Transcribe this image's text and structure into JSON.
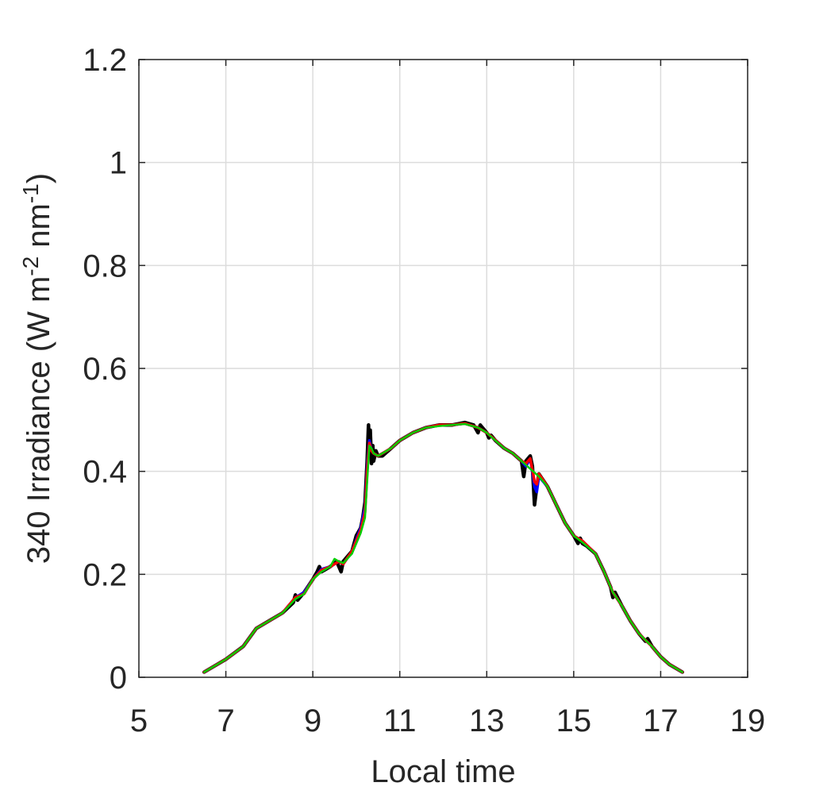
{
  "chart_data": {
    "type": "line",
    "xlabel": "Local time",
    "ylabel": "340 Irradiance (W m^-2 nm^-1)",
    "ylabel_parts": {
      "main": "340 Irradiance (W m",
      "sup1": "-2",
      "mid": " nm",
      "sup2": "-1",
      "end": ")"
    },
    "xlim": [
      5,
      19
    ],
    "ylim": [
      0,
      1.2
    ],
    "xticks": [
      "5",
      "7",
      "9",
      "11",
      "13",
      "15",
      "17",
      "19"
    ],
    "yticks": [
      "0",
      "0.2",
      "0.4",
      "0.6",
      "0.8",
      "1",
      "1.2"
    ],
    "grid": true,
    "series": [
      {
        "color": "#000000",
        "x": [
          6.5,
          7.0,
          7.4,
          7.7,
          8.0,
          8.3,
          8.55,
          8.6,
          8.65,
          8.8,
          9.0,
          9.1,
          9.15,
          9.2,
          9.3,
          9.4,
          9.55,
          9.6,
          9.65,
          9.7,
          9.9,
          10.0,
          10.1,
          10.15,
          10.2,
          10.25,
          10.28,
          10.3,
          10.32,
          10.35,
          10.38,
          10.4,
          10.45,
          10.5,
          10.6,
          10.8,
          11.0,
          11.3,
          11.6,
          11.9,
          12.2,
          12.5,
          12.7,
          12.8,
          12.85,
          12.9,
          13.0,
          13.05,
          13.1,
          13.2,
          13.4,
          13.6,
          13.8,
          13.85,
          13.9,
          14.0,
          14.05,
          14.1,
          14.15,
          14.2,
          14.4,
          14.6,
          14.8,
          15.0,
          15.1,
          15.15,
          15.2,
          15.3,
          15.5,
          15.7,
          15.85,
          15.9,
          15.95,
          16.1,
          16.3,
          16.5,
          16.6,
          16.65,
          16.7,
          16.8,
          17.0,
          17.2,
          17.5
        ],
        "y": [
          0.01,
          0.035,
          0.06,
          0.095,
          0.11,
          0.125,
          0.145,
          0.16,
          0.15,
          0.165,
          0.19,
          0.205,
          0.215,
          0.205,
          0.21,
          0.215,
          0.225,
          0.215,
          0.205,
          0.225,
          0.245,
          0.275,
          0.29,
          0.31,
          0.34,
          0.42,
          0.49,
          0.43,
          0.48,
          0.415,
          0.45,
          0.42,
          0.44,
          0.43,
          0.43,
          0.445,
          0.46,
          0.475,
          0.485,
          0.49,
          0.49,
          0.495,
          0.49,
          0.475,
          0.49,
          0.485,
          0.475,
          0.465,
          0.47,
          0.46,
          0.445,
          0.435,
          0.42,
          0.39,
          0.42,
          0.43,
          0.41,
          0.335,
          0.37,
          0.395,
          0.37,
          0.335,
          0.3,
          0.275,
          0.26,
          0.27,
          0.26,
          0.255,
          0.24,
          0.205,
          0.175,
          0.155,
          0.165,
          0.14,
          0.11,
          0.085,
          0.075,
          0.07,
          0.075,
          0.06,
          0.04,
          0.025,
          0.01
        ]
      },
      {
        "color": "#0000ff",
        "x": [
          6.5,
          7.0,
          7.4,
          7.7,
          8.0,
          8.3,
          8.6,
          8.8,
          9.0,
          9.2,
          9.4,
          9.6,
          9.7,
          9.9,
          10.1,
          10.2,
          10.25,
          10.3,
          10.35,
          10.4,
          10.5,
          10.8,
          11.0,
          11.3,
          11.6,
          11.9,
          12.2,
          12.5,
          12.8,
          13.0,
          13.1,
          13.4,
          13.6,
          13.8,
          13.9,
          14.0,
          14.1,
          14.15,
          14.2,
          14.4,
          14.6,
          14.8,
          15.0,
          15.2,
          15.5,
          15.7,
          15.9,
          16.1,
          16.3,
          16.5,
          16.65,
          16.8,
          17.0,
          17.2,
          17.5
        ],
        "y": [
          0.01,
          0.035,
          0.06,
          0.095,
          0.11,
          0.125,
          0.155,
          0.165,
          0.19,
          0.21,
          0.215,
          0.225,
          0.22,
          0.245,
          0.29,
          0.33,
          0.41,
          0.46,
          0.44,
          0.435,
          0.43,
          0.445,
          0.46,
          0.475,
          0.485,
          0.49,
          0.49,
          0.493,
          0.485,
          0.475,
          0.468,
          0.445,
          0.435,
          0.42,
          0.41,
          0.425,
          0.37,
          0.36,
          0.39,
          0.37,
          0.335,
          0.3,
          0.275,
          0.265,
          0.24,
          0.205,
          0.165,
          0.14,
          0.11,
          0.085,
          0.072,
          0.06,
          0.04,
          0.025,
          0.01
        ]
      },
      {
        "color": "#ff0000",
        "x": [
          6.5,
          7.0,
          7.4,
          7.7,
          8.0,
          8.3,
          8.6,
          8.8,
          9.0,
          9.2,
          9.4,
          9.6,
          9.7,
          9.9,
          10.1,
          10.2,
          10.25,
          10.3,
          10.35,
          10.4,
          10.5,
          10.8,
          11.0,
          11.3,
          11.6,
          11.9,
          12.2,
          12.5,
          12.8,
          13.0,
          13.1,
          13.4,
          13.6,
          13.8,
          13.9,
          14.0,
          14.1,
          14.15,
          14.2,
          14.4,
          14.6,
          14.8,
          15.0,
          15.2,
          15.5,
          15.7,
          15.9,
          16.1,
          16.3,
          16.5,
          16.65,
          16.8,
          17.0,
          17.2,
          17.5
        ],
        "y": [
          0.01,
          0.035,
          0.06,
          0.095,
          0.11,
          0.125,
          0.155,
          0.162,
          0.19,
          0.208,
          0.215,
          0.225,
          0.22,
          0.245,
          0.285,
          0.32,
          0.4,
          0.455,
          0.44,
          0.435,
          0.43,
          0.445,
          0.46,
          0.475,
          0.485,
          0.49,
          0.49,
          0.493,
          0.485,
          0.475,
          0.468,
          0.445,
          0.435,
          0.42,
          0.415,
          0.425,
          0.38,
          0.375,
          0.395,
          0.37,
          0.335,
          0.3,
          0.275,
          0.265,
          0.24,
          0.205,
          0.165,
          0.14,
          0.11,
          0.085,
          0.072,
          0.06,
          0.04,
          0.025,
          0.01
        ]
      },
      {
        "color": "#00cc00",
        "x": [
          6.5,
          7.0,
          7.4,
          7.7,
          8.0,
          8.3,
          8.6,
          8.8,
          9.0,
          9.2,
          9.4,
          9.5,
          9.6,
          9.7,
          9.9,
          10.1,
          10.2,
          10.25,
          10.3,
          10.35,
          10.4,
          10.5,
          10.8,
          11.0,
          11.3,
          11.6,
          11.9,
          12.2,
          12.5,
          12.8,
          13.0,
          13.2,
          13.4,
          13.6,
          13.8,
          14.0,
          14.2,
          14.4,
          14.6,
          14.8,
          15.0,
          15.2,
          15.5,
          15.7,
          15.9,
          16.1,
          16.3,
          16.5,
          16.65,
          16.8,
          17.0,
          17.2,
          17.5
        ],
        "y": [
          0.01,
          0.035,
          0.06,
          0.095,
          0.11,
          0.125,
          0.152,
          0.162,
          0.19,
          0.205,
          0.215,
          0.23,
          0.225,
          0.222,
          0.24,
          0.28,
          0.31,
          0.38,
          0.45,
          0.445,
          0.435,
          0.43,
          0.445,
          0.46,
          0.475,
          0.485,
          0.488,
          0.49,
          0.492,
          0.485,
          0.475,
          0.46,
          0.445,
          0.435,
          0.42,
          0.405,
          0.39,
          0.37,
          0.335,
          0.3,
          0.275,
          0.262,
          0.24,
          0.205,
          0.165,
          0.14,
          0.11,
          0.085,
          0.072,
          0.06,
          0.04,
          0.025,
          0.01
        ]
      }
    ]
  }
}
